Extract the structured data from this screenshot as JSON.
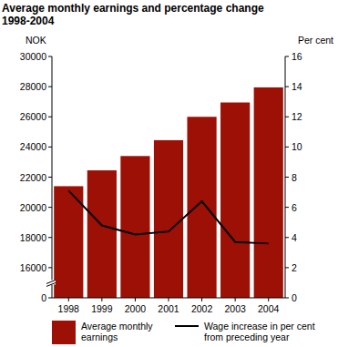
{
  "chart_data": {
    "type": "bar",
    "title": "Average monthly earnings and percentage change 1998-2004",
    "y_label": "NOK",
    "y2_label": "Per cent",
    "categories": [
      "1998",
      "1999",
      "2000",
      "2001",
      "2002",
      "2003",
      "2004"
    ],
    "series": [
      {
        "name": "Average monthly earnings",
        "type": "bar",
        "color": "#9c1006",
        "values": [
          21400,
          22450,
          23400,
          24450,
          26000,
          26950,
          27950
        ]
      },
      {
        "name": "Wage increase in per cent from preceding year",
        "type": "line",
        "axis": "y2",
        "color": "#000000",
        "values": [
          7.1,
          4.8,
          4.2,
          4.4,
          6.4,
          3.7,
          3.6
        ]
      }
    ],
    "ylim": [
      0,
      30000
    ],
    "yticks": [
      0,
      16000,
      18000,
      20000,
      22000,
      24000,
      26000,
      28000,
      30000
    ],
    "y2lim": [
      0,
      16
    ],
    "y2ticks": [
      0,
      2,
      4,
      6,
      8,
      10,
      12,
      14,
      16
    ],
    "grid": false,
    "legend": "bottom"
  }
}
